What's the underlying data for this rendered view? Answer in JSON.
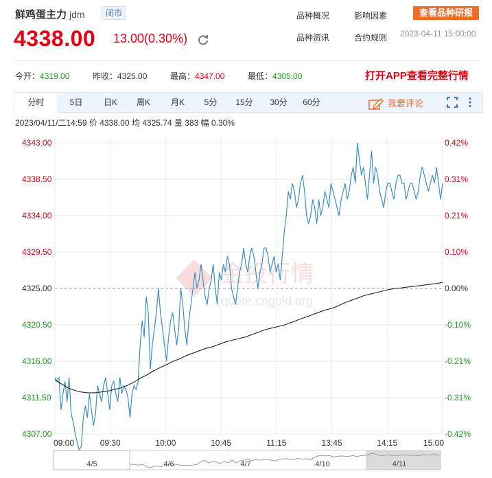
{
  "header": {
    "name": "鲜鸡蛋主力",
    "code": "jdm",
    "status": "闭市",
    "price": "4338.00",
    "change": "13.00(0.30%)",
    "nav_links": [
      "品种概况",
      "影响因素",
      "品种资讯",
      "合约规则"
    ],
    "research_button": "查看品种研报",
    "datetime": "2023-04-11 15:00:00"
  },
  "stats": {
    "open_label": "今开：",
    "open": "4319.00",
    "prev_label": "昨收：",
    "prev": "4325.00",
    "high_label": "最高：",
    "high": "4347.00",
    "low_label": "最低：",
    "low": "4305.00",
    "app_promo": "打开APP查看完整行情"
  },
  "tabs": [
    "分时",
    "5日",
    "日K",
    "周K",
    "月K",
    "5分",
    "15分",
    "30分",
    "60分"
  ],
  "active_tab": "分时",
  "comment_button": "我要评论",
  "info_line": "2023/04/11/二14:59  价 4338.00  均 4325.74  量 383  幅 0.30%",
  "watermark": {
    "line1": "金投行情",
    "line2": "quote.cngold.org"
  },
  "colors": {
    "up": "#e60012",
    "down": "#1a9e1a",
    "price_line": "#3a8fc8",
    "avg_line": "#222222",
    "accent": "#f06a2a"
  },
  "chart_data": {
    "type": "line",
    "title": "",
    "xlabel": "",
    "ylabel": "",
    "ylim": [
      4307.0,
      4343.0
    ],
    "base_price": 4325.0,
    "grid": true,
    "y_ticks_left": [
      "4343.00",
      "4338.50",
      "4334.00",
      "4329.50",
      "4325.00",
      "4320.50",
      "4316.00",
      "4311.50",
      "4307.00"
    ],
    "y_ticks_right": [
      "0.42%",
      "0.31%",
      "0.21%",
      "0.10%",
      "0.00%",
      "-0.10%",
      "-0.21%",
      "-0.31%",
      "-0.42%"
    ],
    "x_ticks": [
      "09:00",
      "09:30",
      "10:00",
      "10:45",
      "11:15",
      "13:45",
      "14:15",
      "15:00"
    ],
    "series": [
      {
        "values": [
          4314,
          4313.5,
          4314,
          4310,
          4312,
          4313.5,
          4311,
          4314,
          4309.5,
          4308.5,
          4307,
          4306,
          4305,
          4305.5,
          4309,
          4310.5,
          4309,
          4312,
          4310,
          4308,
          4309.5,
          4313,
          4312,
          4311,
          4313,
          4314,
          4312,
          4310,
          4313,
          4313.5,
          4312,
          4311,
          4314,
          4312,
          4313,
          4312.5,
          4311.5,
          4309,
          4312,
          4313,
          4312.5,
          4313.5,
          4318,
          4321,
          4319,
          4324,
          4322,
          4315,
          4318,
          4320,
          4322,
          4325,
          4322,
          4320,
          4318,
          4316,
          4319,
          4321,
          4322,
          4320,
          4318,
          4320,
          4325,
          4323,
          4320,
          4318,
          4321,
          4323,
          4325,
          4327,
          4325,
          4326,
          4328,
          4326,
          4324,
          4323,
          4325,
          4326,
          4328,
          4325,
          4323,
          4327,
          4326,
          4328,
          4327,
          4329,
          4328,
          4325,
          4324,
          4323,
          4325,
          4327,
          4328,
          4330,
          4328,
          4327,
          4329,
          4330,
          4329,
          4327,
          4325,
          4327,
          4328,
          4330,
          4330,
          4329,
          4327,
          4328,
          4329,
          4327,
          4328,
          4326,
          4329,
          4332,
          4334,
          4337,
          4336,
          4338,
          4337,
          4335,
          4336,
          4338,
          4339,
          4337,
          4334,
          4333,
          4334,
          4336,
          4335,
          4333,
          4336,
          4334,
          4335,
          4337,
          4336,
          4335,
          4338,
          4337,
          4336,
          4335,
          4334,
          4336,
          4337,
          4338,
          4336,
          4337,
          4339,
          4340,
          4338,
          4343,
          4341,
          4339,
          4340,
          4338,
          4336,
          4339,
          4342,
          4338,
          4340,
          4339,
          4337,
          4336,
          4335,
          4337,
          4338,
          4338,
          4337,
          4336,
          4338,
          4339,
          4339,
          4338,
          4338,
          4336,
          4337,
          4338,
          4338,
          4337,
          4336,
          4337,
          4339,
          4340,
          4339,
          4338,
          4337,
          4338,
          4339,
          4338,
          4340,
          4338,
          4336,
          4338
        ]
      },
      {
        "values": [
          4313.7,
          4313.2,
          4312.7,
          4312.4,
          4312.2,
          4312.1,
          4312.1,
          4312.2,
          4312.3,
          4312.5,
          4312.7,
          4313.0,
          4313.4,
          4313.9,
          4314.3,
          4314.8,
          4315.2,
          4315.6,
          4316.0,
          4316.3,
          4316.7,
          4317.0,
          4317.3,
          4317.6,
          4317.8,
          4318.1,
          4318.4,
          4318.6,
          4318.8,
          4319.0,
          4319.3,
          4319.6,
          4319.9,
          4320.1,
          4320.3,
          4320.5,
          4320.8,
          4321.1,
          4321.4,
          4321.7,
          4322.0,
          4322.3,
          4322.5,
          4322.8,
          4323.2,
          4323.5,
          4323.8,
          4324.1,
          4324.3,
          4324.5,
          4324.7,
          4324.9,
          4325.0,
          4325.1,
          4325.2,
          4325.3,
          4325.4,
          4325.5,
          4325.6,
          4325.74
        ]
      }
    ],
    "navigator_dates": [
      "4/5",
      "4/6",
      "4/7",
      "4/10",
      "4/11"
    ]
  }
}
